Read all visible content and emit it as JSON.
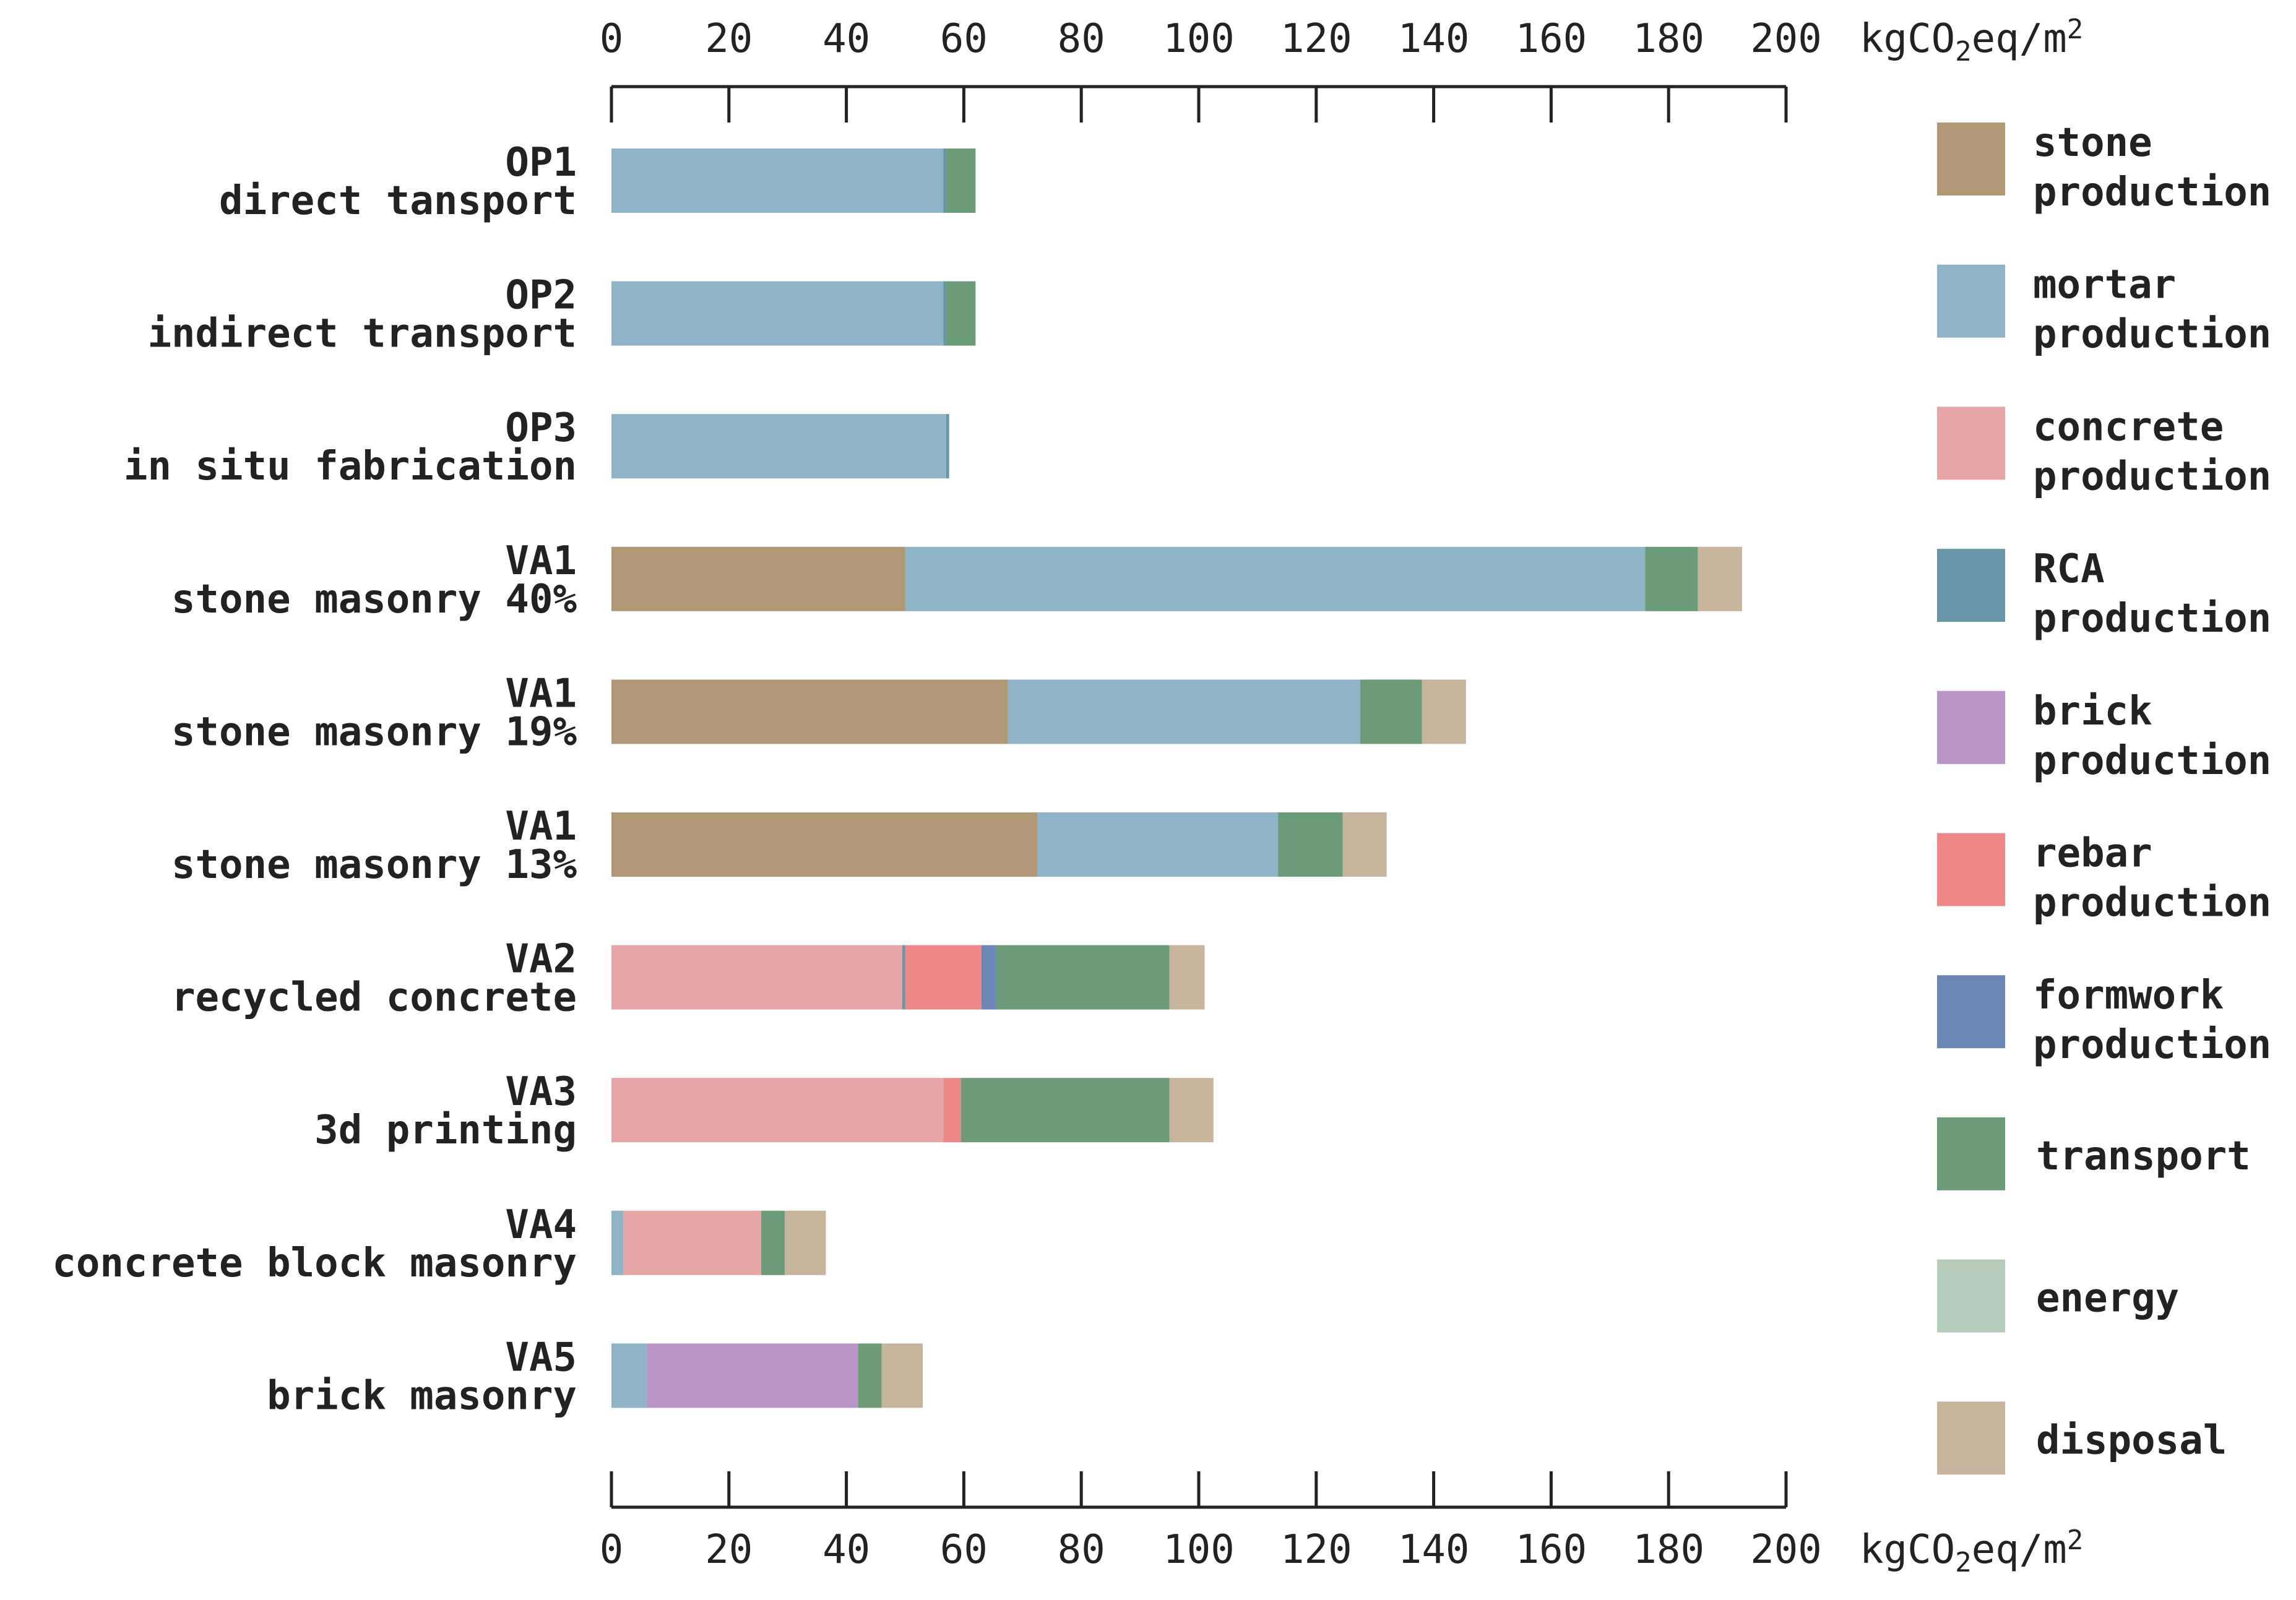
{
  "chart_data": {
    "type": "bar",
    "orientation": "horizontal",
    "stacked": true,
    "unit": "kgCO₂eq/m²",
    "unit_parts": {
      "base": "kgCO",
      "sub": "2",
      "mid": "eq/m",
      "sup": "2"
    },
    "xlim": [
      0,
      200
    ],
    "xticks": [
      0,
      20,
      40,
      60,
      80,
      100,
      120,
      140,
      160,
      180,
      200
    ],
    "axis_positions": [
      "top",
      "bottom"
    ],
    "grid": false,
    "legend_position": "right",
    "categories": [
      {
        "code": "OP1",
        "name": "direct tansport"
      },
      {
        "code": "OP2",
        "name": "indirect transport"
      },
      {
        "code": "OP3",
        "name": "in situ fabrication"
      },
      {
        "code": "VA1",
        "name": "stone masonry 40%"
      },
      {
        "code": "VA1",
        "name": "stone masonry 19%"
      },
      {
        "code": "VA1",
        "name": "stone masonry 13%"
      },
      {
        "code": "VA2",
        "name": "recycled concrete"
      },
      {
        "code": "VA3",
        "name": "3d printing"
      },
      {
        "code": "VA4",
        "name": "concrete block masonry"
      },
      {
        "code": "VA5",
        "name": "brick masonry"
      }
    ],
    "series": [
      {
        "name": "stone production",
        "label_lines": [
          "stone",
          "production"
        ],
        "color": "#b09775",
        "values": [
          0,
          0,
          0,
          50,
          67.5,
          72.5,
          0,
          0,
          0,
          0
        ]
      },
      {
        "name": "mortar production",
        "label_lines": [
          "mortar",
          "production"
        ],
        "color": "#8fb4c8",
        "values": [
          56.5,
          56.5,
          57,
          126,
          60,
          41,
          0,
          0,
          2,
          6
        ]
      },
      {
        "name": "concrete production",
        "label_lines": [
          "concrete",
          "production"
        ],
        "color": "#e6a5a6",
        "values": [
          0,
          0,
          0,
          0,
          0,
          0,
          49.5,
          56.5,
          23.5,
          0
        ]
      },
      {
        "name": "RCA production",
        "label_lines": [
          "RCA",
          "production"
        ],
        "color": "#6895a8",
        "values": [
          0.5,
          0.5,
          0.5,
          0,
          0,
          0,
          0.5,
          0,
          0,
          0
        ]
      },
      {
        "name": "brick production",
        "label_lines": [
          "brick",
          "production"
        ],
        "color": "#b995c8",
        "values": [
          0,
          0,
          0,
          0,
          0,
          0,
          0,
          0,
          0,
          36
        ]
      },
      {
        "name": "rebar production",
        "label_lines": [
          "rebar",
          "production"
        ],
        "color": "#ee8888",
        "values": [
          0,
          0,
          0,
          0,
          0,
          0,
          13,
          3,
          0,
          0
        ]
      },
      {
        "name": "formwork production",
        "label_lines": [
          "formwork",
          "production"
        ],
        "color": "#6a87b6",
        "values": [
          0,
          0,
          0,
          0,
          0,
          0,
          2.5,
          0,
          0,
          0
        ]
      },
      {
        "name": "transport",
        "label_lines": [
          "transport"
        ],
        "color": "#6b9b78",
        "values": [
          5,
          5,
          0,
          9,
          10.5,
          11,
          29.5,
          35.5,
          4,
          4
        ]
      },
      {
        "name": "energy",
        "label_lines": [
          "energy"
        ],
        "color": "#b6ccba",
        "values": [
          0,
          0,
          0,
          0,
          0,
          0,
          0,
          0,
          0,
          0
        ]
      },
      {
        "name": "disposal",
        "label_lines": [
          "disposal"
        ],
        "color": "#c6b49c",
        "values": [
          0,
          0,
          0,
          7.5,
          7.5,
          7.5,
          6,
          7.5,
          7,
          7
        ]
      }
    ]
  }
}
